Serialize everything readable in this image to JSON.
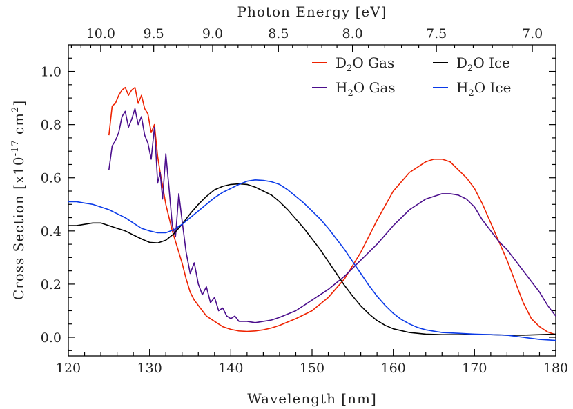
{
  "chart_data": {
    "type": "line",
    "xlabel": "Wavelength [nm]",
    "ylabel": "Cross Section [x10",
    "ylabel_exp": "-17",
    "ylabel_unit": " cm",
    "ylabel_unit_exp": "2",
    "ylabel_close": "]",
    "top_axis_label": "Photon Energy [eV]",
    "xlim": [
      120,
      180
    ],
    "ylim": [
      -0.07,
      1.1
    ],
    "x_ticks": [
      120,
      130,
      140,
      150,
      160,
      170,
      180
    ],
    "x_tick_labels": [
      "120",
      "130",
      "140",
      "150",
      "160",
      "170",
      "180"
    ],
    "y_ticks": [
      0.0,
      0.2,
      0.4,
      0.6,
      0.8,
      1.0
    ],
    "y_tick_labels": [
      "0.0",
      "0.2",
      "0.4",
      "0.6",
      "0.8",
      "1.0"
    ],
    "top_ticks_ev": [
      10.0,
      9.5,
      9.0,
      8.5,
      8.0,
      7.5,
      7.0
    ],
    "top_tick_labels": [
      "10.0",
      "9.5",
      "9.0",
      "8.5",
      "8.0",
      "7.5",
      "7.0"
    ],
    "legend_position": "top-right",
    "series": [
      {
        "name": "D",
        "name_sub": "2",
        "name_rest": "O Gas",
        "color": "#ee2200",
        "x": [
          125.0,
          125.4,
          125.8,
          126.2,
          126.6,
          127.0,
          127.4,
          127.8,
          128.2,
          128.6,
          129.0,
          129.4,
          129.8,
          130.2,
          130.6,
          131.0,
          131.3,
          131.6,
          132.0,
          132.4,
          132.8,
          133.2,
          133.6,
          134.0,
          134.5,
          135.0,
          135.5,
          136.0,
          136.5,
          137.0,
          138.0,
          139.0,
          140.0,
          141.0,
          142.0,
          143.0,
          144.0,
          145.0,
          146.0,
          148.0,
          150.0,
          152.0,
          154.0,
          156.0,
          158.0,
          160.0,
          162.0,
          164.0,
          165.0,
          166.0,
          167.0,
          168.0,
          169.0,
          170.0,
          171.0,
          172.0,
          173.0,
          174.0,
          175.0,
          176.0,
          177.0,
          178.0,
          179.0,
          180.0
        ],
        "y": [
          0.76,
          0.87,
          0.88,
          0.91,
          0.93,
          0.94,
          0.91,
          0.93,
          0.94,
          0.88,
          0.91,
          0.86,
          0.84,
          0.77,
          0.8,
          0.68,
          0.62,
          0.57,
          0.5,
          0.45,
          0.4,
          0.36,
          0.32,
          0.28,
          0.22,
          0.17,
          0.14,
          0.12,
          0.1,
          0.08,
          0.06,
          0.04,
          0.03,
          0.024,
          0.022,
          0.024,
          0.028,
          0.035,
          0.045,
          0.07,
          0.1,
          0.15,
          0.22,
          0.32,
          0.44,
          0.55,
          0.62,
          0.66,
          0.67,
          0.67,
          0.66,
          0.63,
          0.6,
          0.56,
          0.5,
          0.43,
          0.36,
          0.29,
          0.21,
          0.13,
          0.07,
          0.04,
          0.02,
          0.01
        ]
      },
      {
        "name": "H",
        "name_sub": "2",
        "name_rest": "O Gas",
        "color": "#4b0e8c",
        "x": [
          125.0,
          125.4,
          125.8,
          126.2,
          126.6,
          127.0,
          127.4,
          127.8,
          128.2,
          128.6,
          129.0,
          129.4,
          129.8,
          130.2,
          130.6,
          131.0,
          131.3,
          131.6,
          132.0,
          132.4,
          132.8,
          133.2,
          133.6,
          134.0,
          134.5,
          135.0,
          135.5,
          136.0,
          136.5,
          137.0,
          137.5,
          138.0,
          138.5,
          139.0,
          139.5,
          140.0,
          140.5,
          141.0,
          142.0,
          143.0,
          144.0,
          145.0,
          146.0,
          148.0,
          150.0,
          152.0,
          154.0,
          156.0,
          158.0,
          160.0,
          162.0,
          164.0,
          165.0,
          166.0,
          167.0,
          168.0,
          169.0,
          170.0,
          171.0,
          172.0,
          173.0,
          174.0,
          175.0,
          176.0,
          177.0,
          178.0,
          179.0,
          180.0
        ],
        "y": [
          0.63,
          0.72,
          0.74,
          0.77,
          0.83,
          0.85,
          0.79,
          0.82,
          0.86,
          0.8,
          0.83,
          0.76,
          0.73,
          0.67,
          0.79,
          0.58,
          0.62,
          0.52,
          0.69,
          0.56,
          0.42,
          0.38,
          0.54,
          0.44,
          0.32,
          0.24,
          0.28,
          0.2,
          0.16,
          0.19,
          0.13,
          0.15,
          0.1,
          0.11,
          0.08,
          0.07,
          0.08,
          0.06,
          0.06,
          0.055,
          0.06,
          0.065,
          0.075,
          0.1,
          0.14,
          0.18,
          0.23,
          0.29,
          0.35,
          0.42,
          0.48,
          0.52,
          0.53,
          0.54,
          0.54,
          0.535,
          0.52,
          0.49,
          0.44,
          0.4,
          0.36,
          0.33,
          0.29,
          0.25,
          0.21,
          0.17,
          0.12,
          0.08
        ]
      },
      {
        "name": "D",
        "name_sub": "2",
        "name_rest": "O Ice",
        "color": "#000000",
        "x": [
          120.0,
          121.0,
          122.0,
          123.0,
          124.0,
          125.0,
          126.0,
          127.0,
          128.0,
          129.0,
          130.0,
          131.0,
          132.0,
          133.0,
          134.0,
          135.0,
          136.0,
          137.0,
          138.0,
          139.0,
          140.0,
          141.0,
          142.0,
          143.0,
          144.0,
          145.0,
          146.0,
          147.0,
          148.0,
          149.0,
          150.0,
          151.0,
          152.0,
          153.0,
          154.0,
          155.0,
          156.0,
          157.0,
          158.0,
          159.0,
          160.0,
          162.0,
          164.0,
          166.0,
          168.0,
          170.0,
          172.0,
          174.0,
          176.0,
          178.0,
          180.0
        ],
        "y": [
          0.42,
          0.42,
          0.425,
          0.43,
          0.43,
          0.42,
          0.41,
          0.4,
          0.385,
          0.37,
          0.357,
          0.355,
          0.365,
          0.39,
          0.425,
          0.465,
          0.5,
          0.53,
          0.555,
          0.568,
          0.575,
          0.577,
          0.575,
          0.565,
          0.55,
          0.535,
          0.51,
          0.48,
          0.445,
          0.41,
          0.37,
          0.33,
          0.285,
          0.24,
          0.195,
          0.155,
          0.118,
          0.088,
          0.063,
          0.045,
          0.032,
          0.018,
          0.012,
          0.01,
          0.01,
          0.01,
          0.01,
          0.008,
          0.008,
          0.01,
          0.012
        ]
      },
      {
        "name": "H",
        "name_sub": "2",
        "name_rest": "O Ice",
        "color": "#0a3ae8",
        "x": [
          120.0,
          121.0,
          122.0,
          123.0,
          124.0,
          125.0,
          126.0,
          127.0,
          128.0,
          129.0,
          130.0,
          131.0,
          132.0,
          133.0,
          134.0,
          135.0,
          136.0,
          137.0,
          138.0,
          139.0,
          140.0,
          141.0,
          142.0,
          143.0,
          144.0,
          145.0,
          146.0,
          147.0,
          148.0,
          149.0,
          150.0,
          151.0,
          152.0,
          153.0,
          154.0,
          155.0,
          156.0,
          157.0,
          158.0,
          159.0,
          160.0,
          161.0,
          162.0,
          163.0,
          164.0,
          166.0,
          168.0,
          170.0,
          172.0,
          174.0,
          176.0,
          178.0,
          180.0
        ],
        "y": [
          0.51,
          0.51,
          0.505,
          0.5,
          0.49,
          0.48,
          0.465,
          0.45,
          0.43,
          0.41,
          0.4,
          0.393,
          0.393,
          0.405,
          0.425,
          0.45,
          0.475,
          0.5,
          0.525,
          0.545,
          0.56,
          0.575,
          0.587,
          0.592,
          0.59,
          0.585,
          0.575,
          0.555,
          0.53,
          0.505,
          0.475,
          0.445,
          0.41,
          0.37,
          0.33,
          0.285,
          0.24,
          0.195,
          0.155,
          0.12,
          0.09,
          0.067,
          0.05,
          0.037,
          0.028,
          0.018,
          0.015,
          0.012,
          0.01,
          0.008,
          0.0,
          -0.008,
          -0.012
        ]
      }
    ]
  }
}
